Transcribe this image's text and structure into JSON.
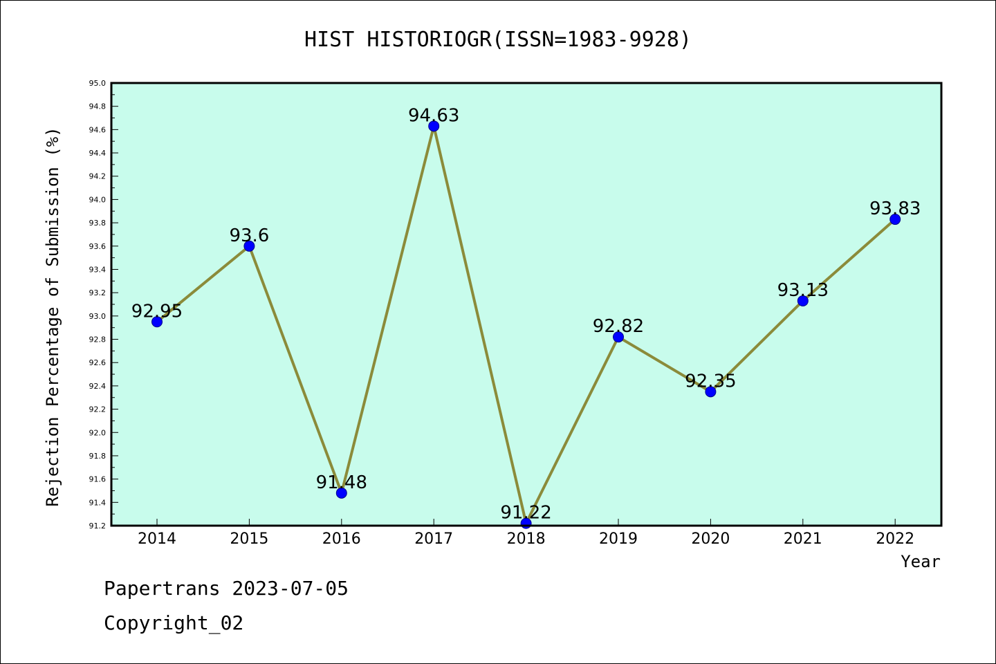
{
  "chart_data": {
    "type": "line",
    "title": "HIST HISTORIOGR(ISSN=1983-9928)",
    "xlabel": "Year",
    "ylabel": "Rejection Percentage of Submission (%)",
    "categories": [
      "2014",
      "2015",
      "2016",
      "2017",
      "2018",
      "2019",
      "2020",
      "2021",
      "2022"
    ],
    "values": [
      92.95,
      93.6,
      91.48,
      94.63,
      91.22,
      92.82,
      92.35,
      93.13,
      93.83
    ],
    "data_labels": [
      "92.95",
      "93.6",
      "91.48",
      "94.63",
      "91.22",
      "92.82",
      "92.35",
      "93.13",
      "93.83"
    ],
    "ylim": [
      91.2,
      95.0
    ],
    "yticks": [
      "91.2",
      "91.4",
      "91.6",
      "91.8",
      "92.0",
      "92.2",
      "92.4",
      "92.6",
      "92.8",
      "93.0",
      "93.2",
      "93.4",
      "93.6",
      "93.8",
      "94.0",
      "94.2",
      "94.4",
      "94.6",
      "94.8",
      "95.0"
    ],
    "grid": false,
    "colors": {
      "plot_background": "#c8fcec",
      "line": "#8b8b3a",
      "marker": "#0000ff",
      "marker_edge": "#00008b"
    }
  },
  "footer": {
    "line1": "Papertrans 2023-07-05",
    "line2": "Copyright_02"
  }
}
